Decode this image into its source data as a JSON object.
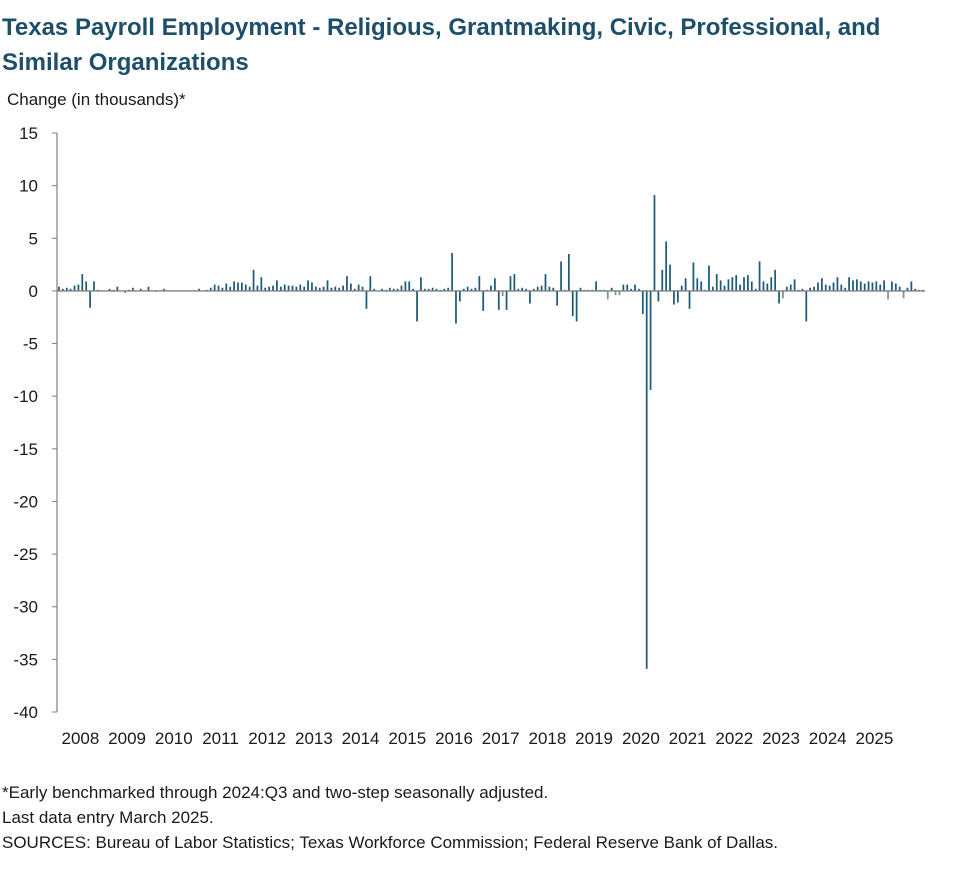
{
  "chart_data": {
    "type": "bar",
    "title": "Texas Payroll Employment - Religious, Grantmaking, Civic, Professional, and Similar Organizations",
    "ylabel": "Change (in thousands)*",
    "xlabel": "",
    "ylim": [
      -40,
      15
    ],
    "yticks": [
      15,
      10,
      5,
      0,
      -5,
      -10,
      -15,
      -20,
      -25,
      -30,
      -35,
      -40
    ],
    "x_tick_labels": [
      "2008",
      "2009",
      "2010",
      "2011",
      "2012",
      "2013",
      "2014",
      "2015",
      "2016",
      "2017",
      "2018",
      "2019",
      "2020",
      "2021",
      "2022",
      "2023",
      "2024",
      "2025"
    ],
    "x_start": "2008-01",
    "x_end": "2025-03",
    "grid": false,
    "legend": "none",
    "colors": {
      "bar": "#1d5b79",
      "negative_small": "#8c8c8c",
      "axis": "#808080",
      "title": "#1d4f6a"
    },
    "series": [
      {
        "values": [
          0.4,
          0.2,
          0.3,
          0.2,
          0.5,
          0.6,
          1.6,
          0.9,
          -1.6,
          0.9,
          0.1,
          0.0,
          0.0,
          0.2,
          0.1,
          0.4,
          0.0,
          -0.2,
          0.1,
          0.3,
          0.0,
          0.2,
          0.0,
          0.4,
          0.0,
          -0.1,
          0.0,
          0.2,
          0.0,
          0.0,
          0.0,
          0.0,
          0.0,
          0.0,
          0.0,
          0.0,
          0.2,
          0.0,
          0.1,
          0.3,
          0.6,
          0.5,
          0.3,
          0.7,
          0.4,
          0.9,
          0.8,
          0.8,
          0.6,
          0.4,
          2.0,
          0.5,
          1.3,
          0.3,
          0.4,
          0.5,
          1.0,
          0.4,
          0.6,
          0.5,
          0.5,
          0.4,
          0.6,
          0.4,
          1.0,
          0.8,
          0.4,
          0.3,
          0.4,
          1.0,
          0.3,
          0.4,
          0.3,
          0.5,
          1.4,
          0.7,
          0.2,
          0.6,
          0.4,
          -1.7,
          1.4,
          0.2,
          0.0,
          0.2,
          0.1,
          0.3,
          0.2,
          0.2,
          0.5,
          0.9,
          0.9,
          0.2,
          -2.9,
          1.3,
          0.2,
          0.2,
          0.3,
          0.2,
          0.1,
          0.2,
          0.3,
          3.6,
          -3.1,
          -1.0,
          0.2,
          0.4,
          0.2,
          0.3,
          1.4,
          -1.9,
          0.1,
          0.5,
          1.2,
          -1.8,
          -0.5,
          -1.8,
          1.4,
          1.6,
          0.2,
          0.3,
          0.2,
          -1.2,
          0.2,
          0.4,
          0.5,
          1.6,
          0.4,
          0.3,
          -1.4,
          2.8,
          0.1,
          3.5,
          -2.4,
          -2.9,
          0.3,
          0.1,
          0.1,
          0.1,
          0.9,
          0.1,
          0.1,
          -0.8,
          0.3,
          -0.4,
          -0.4,
          0.6,
          0.6,
          0.2,
          0.6,
          0.2,
          -2.2,
          -35.9,
          -9.4,
          9.1,
          -1.0,
          2.0,
          4.7,
          2.5,
          -1.3,
          -1.1,
          0.5,
          1.2,
          -1.7,
          2.7,
          1.2,
          0.9,
          0.1,
          2.4,
          0.4,
          1.6,
          1.0,
          0.5,
          1.1,
          1.3,
          1.5,
          0.6,
          1.3,
          1.5,
          0.9,
          0.2,
          2.8,
          0.9,
          0.7,
          1.3,
          2.0,
          -1.2,
          -0.7,
          0.4,
          0.6,
          1.1,
          0.1,
          0.2,
          -2.9,
          0.3,
          0.4,
          0.8,
          1.2,
          0.6,
          0.5,
          0.8,
          1.3,
          0.6,
          0.3,
          1.3,
          1.0,
          1.1,
          0.9,
          0.7,
          0.9,
          0.8,
          0.9,
          0.6,
          1.0,
          -0.8,
          0.9,
          0.7,
          0.4,
          -0.7,
          0.3,
          0.9,
          0.2,
          0.1,
          0.1
        ]
      }
    ]
  },
  "notes": {
    "line1": "*Early benchmarked through 2024:Q3 and two-step seasonally adjusted.",
    "line2": "Last data entry March 2025.",
    "line3": "SOURCES: Bureau of Labor Statistics; Texas Workforce Commission; Federal Reserve Bank of Dallas."
  }
}
